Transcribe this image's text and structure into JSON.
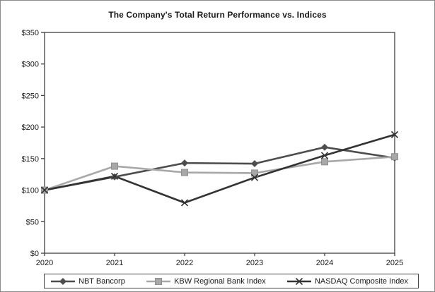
{
  "title": "The Company's Total Return Performance vs. Indices",
  "chart_data": {
    "type": "line",
    "title": "The Company's Total Return Performance vs. Indices",
    "categories": [
      "2020",
      "2021",
      "2022",
      "2023",
      "2024",
      "2025"
    ],
    "series": [
      {
        "name": "NBT Bancorp",
        "marker": "diamond",
        "color": "#4d4d4d",
        "values": [
          100,
          121,
          143,
          142,
          168,
          151
        ]
      },
      {
        "name": "KBW Regional Bank Index",
        "marker": "square",
        "color": "#a8a8a8",
        "values": [
          100,
          138,
          128,
          127,
          145,
          153
        ]
      },
      {
        "name": "NASDAQ Composite Index",
        "marker": "x",
        "color": "#333333",
        "values": [
          100,
          122,
          80,
          120,
          155,
          188
        ]
      }
    ],
    "y_ticks": [
      0,
      50,
      100,
      150,
      200,
      250,
      300,
      350
    ],
    "y_tick_labels": [
      "$0",
      "$50",
      "$100",
      "$150",
      "$200",
      "$250",
      "$300",
      "$350"
    ],
    "ylim": [
      0,
      350
    ],
    "xlabel": "",
    "ylabel": "",
    "grid": false,
    "legend_position": "bottom",
    "frame_color": "#404040"
  }
}
